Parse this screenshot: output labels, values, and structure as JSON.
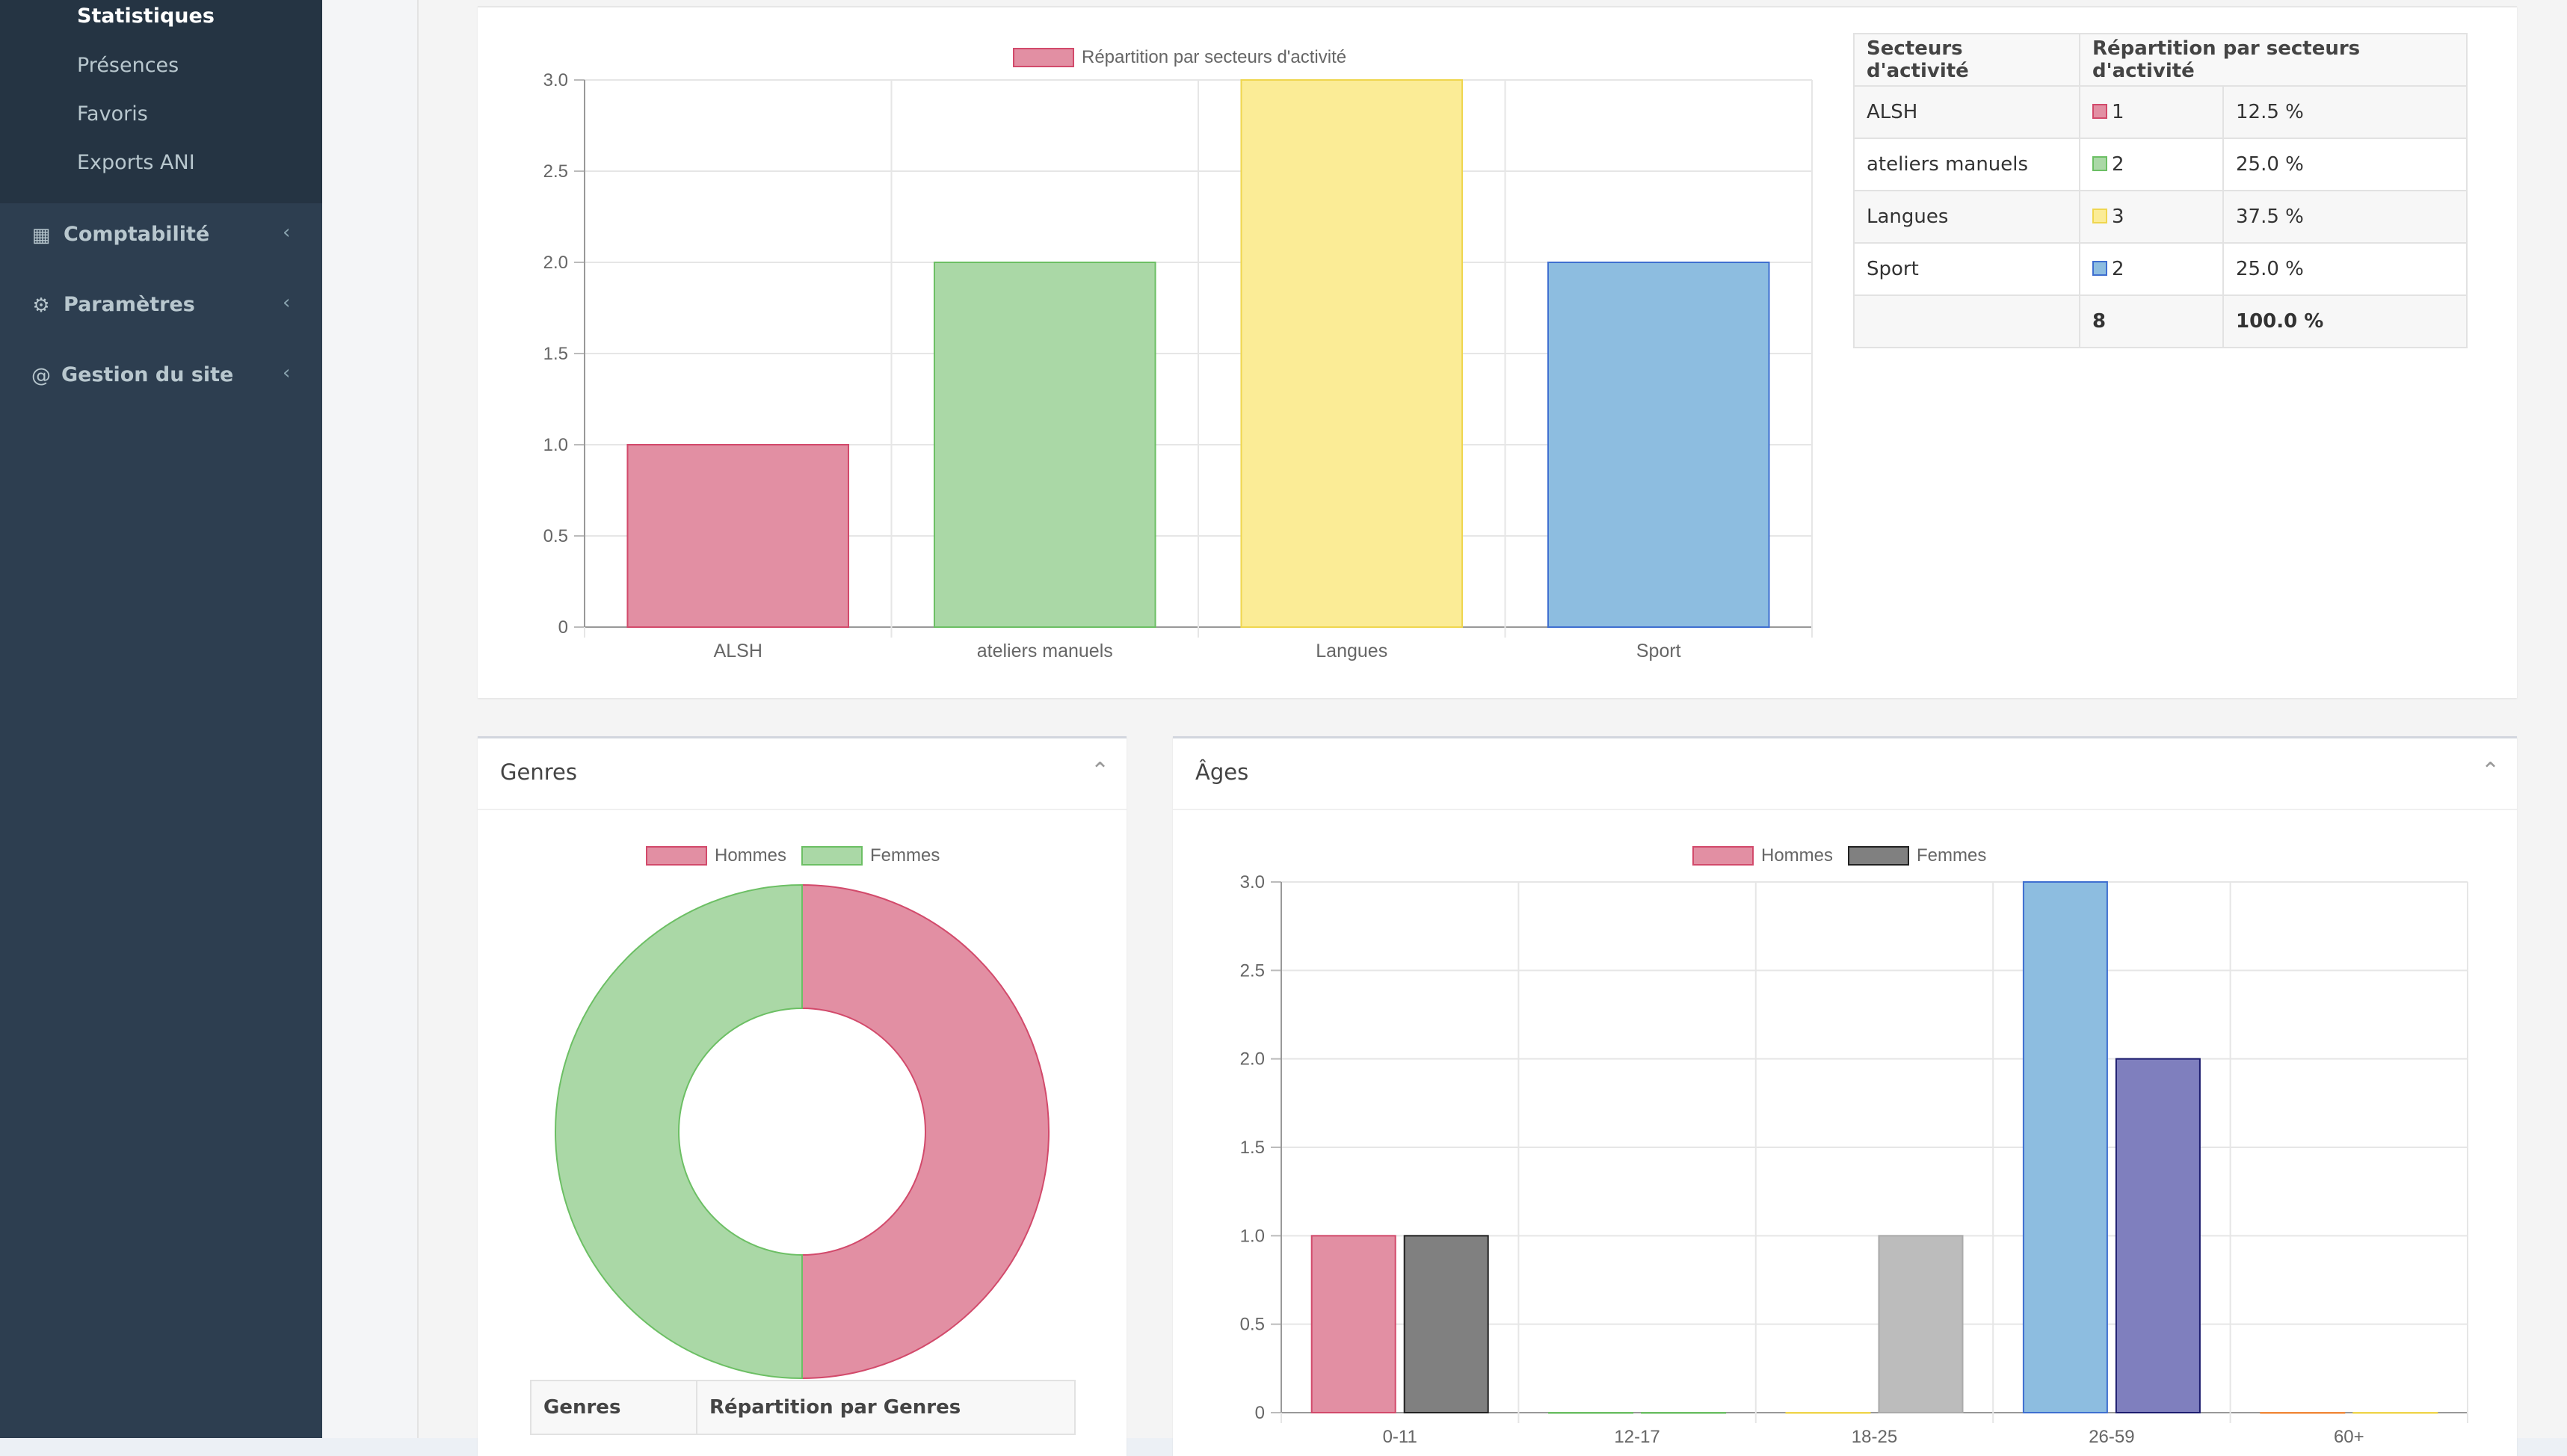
{
  "sidebar": {
    "subitems": [
      "Statistiques",
      "Présences",
      "Favoris",
      "Exports ANI"
    ],
    "menus": [
      {
        "label": "Comptabilité",
        "icon": "calculator-icon"
      },
      {
        "label": "Paramètres",
        "icon": "gears-icon"
      },
      {
        "label": "Gestion du site",
        "icon": "at-icon"
      }
    ]
  },
  "sectors_table": {
    "headers": [
      "Secteurs d'activité",
      "Répartition par secteurs d'activité"
    ],
    "rows": [
      {
        "label": "ALSH",
        "count": "1",
        "pct": "12.5 %",
        "color": "#e0758f"
      },
      {
        "label": "ateliers manuels",
        "count": "2",
        "pct": "25.0 %",
        "color": "#82c87a"
      },
      {
        "label": "Langues",
        "count": "3",
        "pct": "37.5 %",
        "color": "#f7df5e"
      },
      {
        "label": "Sport",
        "count": "2",
        "pct": "25.0 %",
        "color": "#5f9fdb"
      }
    ],
    "total": {
      "label": "",
      "count": "8",
      "pct": "100.0 %"
    }
  },
  "genres_box": {
    "title": "Genres",
    "table_headers": [
      "Genres",
      "Répartition par Genres"
    ]
  },
  "ages_box": {
    "title": "Âges"
  },
  "chart_data": [
    {
      "type": "bar",
      "series": [
        {
          "name": "Répartition par secteurs d'activité",
          "values": [
            1,
            2,
            3,
            2
          ]
        }
      ],
      "categories": [
        "ALSH",
        "ateliers manuels",
        "Langues",
        "Sport"
      ],
      "colors": [
        "#e28fa3",
        "#aad8a6",
        "#fbec96",
        "#8dbde0"
      ],
      "border_colors": [
        "#d24a6b",
        "#6cbf64",
        "#efd64f",
        "#3f6fd0"
      ],
      "ylim": [
        0,
        3
      ],
      "yticks": [
        "0",
        "0.5",
        "1.0",
        "1.5",
        "2.0",
        "2.5",
        "3.0"
      ],
      "legend_color": "#e28fa3",
      "grid": true
    },
    {
      "type": "pie",
      "donut": true,
      "labels": [
        "Hommes",
        "Femmes"
      ],
      "values": [
        1,
        1
      ],
      "colors": [
        "#e28fa3",
        "#aad8a6"
      ],
      "border_colors": [
        "#d24a6b",
        "#6cbf64"
      ]
    },
    {
      "type": "bar",
      "categories": [
        "0-11",
        "12-17",
        "18-25",
        "26-59",
        "60+"
      ],
      "series": [
        {
          "name": "Hommes",
          "values": [
            1,
            0,
            0,
            3,
            0
          ],
          "colors": [
            "#e28fa3",
            "#aad8a6",
            "#fbec96",
            "#8dbde0",
            "#f7b98a"
          ],
          "border_colors": [
            "#d24a6b",
            "#6cbf64",
            "#efd64f",
            "#3f6fd0",
            "#f08a3c"
          ]
        },
        {
          "name": "Femmes",
          "values": [
            1,
            0,
            1,
            2,
            0
          ],
          "colors": [
            "#808080",
            "#c6e6c2",
            "#bcbcbc",
            "#7f7fbe",
            "#fbe3b0"
          ],
          "border_colors": [
            "#222222",
            "#6cbf64",
            "#aaaaaa",
            "#1c1c6e",
            "#efd64f"
          ]
        }
      ],
      "legend_colors": [
        "#e28fa3",
        "#808080"
      ],
      "ylim": [
        0,
        3
      ],
      "yticks": [
        "0",
        "0.5",
        "1.0",
        "1.5",
        "2.0",
        "2.5",
        "3.0"
      ],
      "grid": true
    }
  ]
}
